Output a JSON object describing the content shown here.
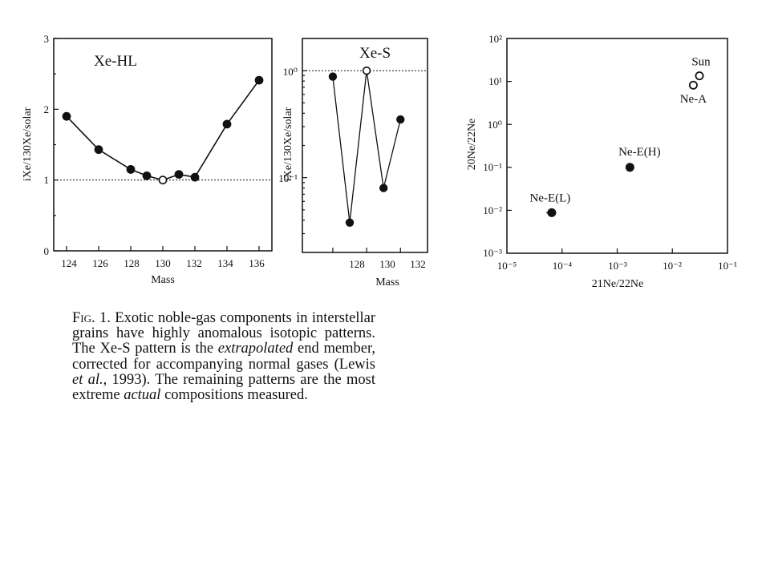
{
  "chart_data": [
    {
      "type": "line",
      "title": "Xe-HL",
      "xlabel": "Mass",
      "ylabel": "iXe/130Xe/solar",
      "xlim": [
        123.2,
        136.8
      ],
      "ylim": [
        0,
        3
      ],
      "x_ticks": [
        "124",
        "126",
        "128",
        "130",
        "132",
        "134",
        "136"
      ],
      "y_ticks": [
        "0",
        "1",
        "2",
        "3"
      ],
      "reference_line": 1,
      "series": [
        {
          "x": [
            124,
            126,
            128,
            129,
            130,
            131,
            132,
            134,
            136
          ],
          "y": [
            1.9,
            1.43,
            1.15,
            1.06,
            1.0,
            1.08,
            1.04,
            1.79,
            2.41
          ],
          "open": [
            false,
            false,
            false,
            false,
            true,
            false,
            false,
            false,
            false
          ]
        }
      ]
    },
    {
      "type": "line",
      "title": "Xe-S",
      "xlabel": "Mass",
      "ylabel": "iXe/130Xe/solar",
      "log_y": true,
      "xlim": [
        126.2,
        133.6
      ],
      "ylim": [
        0.02,
        2.0
      ],
      "x_ticks": [
        "128",
        "130",
        "132"
      ],
      "y_ticks": [
        "10⁰",
        "10⁻¹"
      ],
      "reference_line": 1,
      "series": [
        {
          "x": [
            128,
            129,
            130,
            131,
            132
          ],
          "y": [
            0.88,
            0.038,
            1.0,
            0.08,
            0.35
          ],
          "open": [
            false,
            false,
            true,
            false,
            false
          ]
        }
      ]
    },
    {
      "type": "scatter",
      "xlabel": "21Ne/22Ne",
      "ylabel": "20Ne/22Ne",
      "log_x": true,
      "log_y": true,
      "xlim": [
        1e-05,
        0.1
      ],
      "ylim": [
        0.001,
        100
      ],
      "x_ticks": [
        "10⁻⁵",
        "10⁻⁴",
        "10⁻³",
        "10⁻²",
        "10⁻¹"
      ],
      "y_ticks": [
        "10²",
        "10¹",
        "10⁰",
        "10⁻¹",
        "10⁻²",
        "10⁻³"
      ],
      "points": [
        {
          "label": "Sun",
          "x": 0.031,
          "y": 13.5,
          "open": true
        },
        {
          "label": "Ne-A",
          "x": 0.024,
          "y": 8.2,
          "open": true
        },
        {
          "label": "Ne-E(H)",
          "x": 0.0017,
          "y": 0.1,
          "open": false
        },
        {
          "label": "Ne-E(L)",
          "x": 6.5e-05,
          "y": 0.0088,
          "open": false,
          "xerr": [
            5.2e-05,
            7.8e-05
          ]
        }
      ]
    }
  ],
  "caption": {
    "fig": "Fig. 1.",
    "text_1": " Exotic noble-gas components in interstellar grains have highly anomalous isotopic patterns. The Xe-S pattern is the ",
    "italic_1": "extrapolated",
    "text_2": " end member, corrected for accompanying normal gases (Lewis ",
    "italic_2": "et al.",
    "text_3": ", 1993). The remaining patterns are the most extreme ",
    "italic_3": "actual",
    "text_4": " compositions measured."
  }
}
